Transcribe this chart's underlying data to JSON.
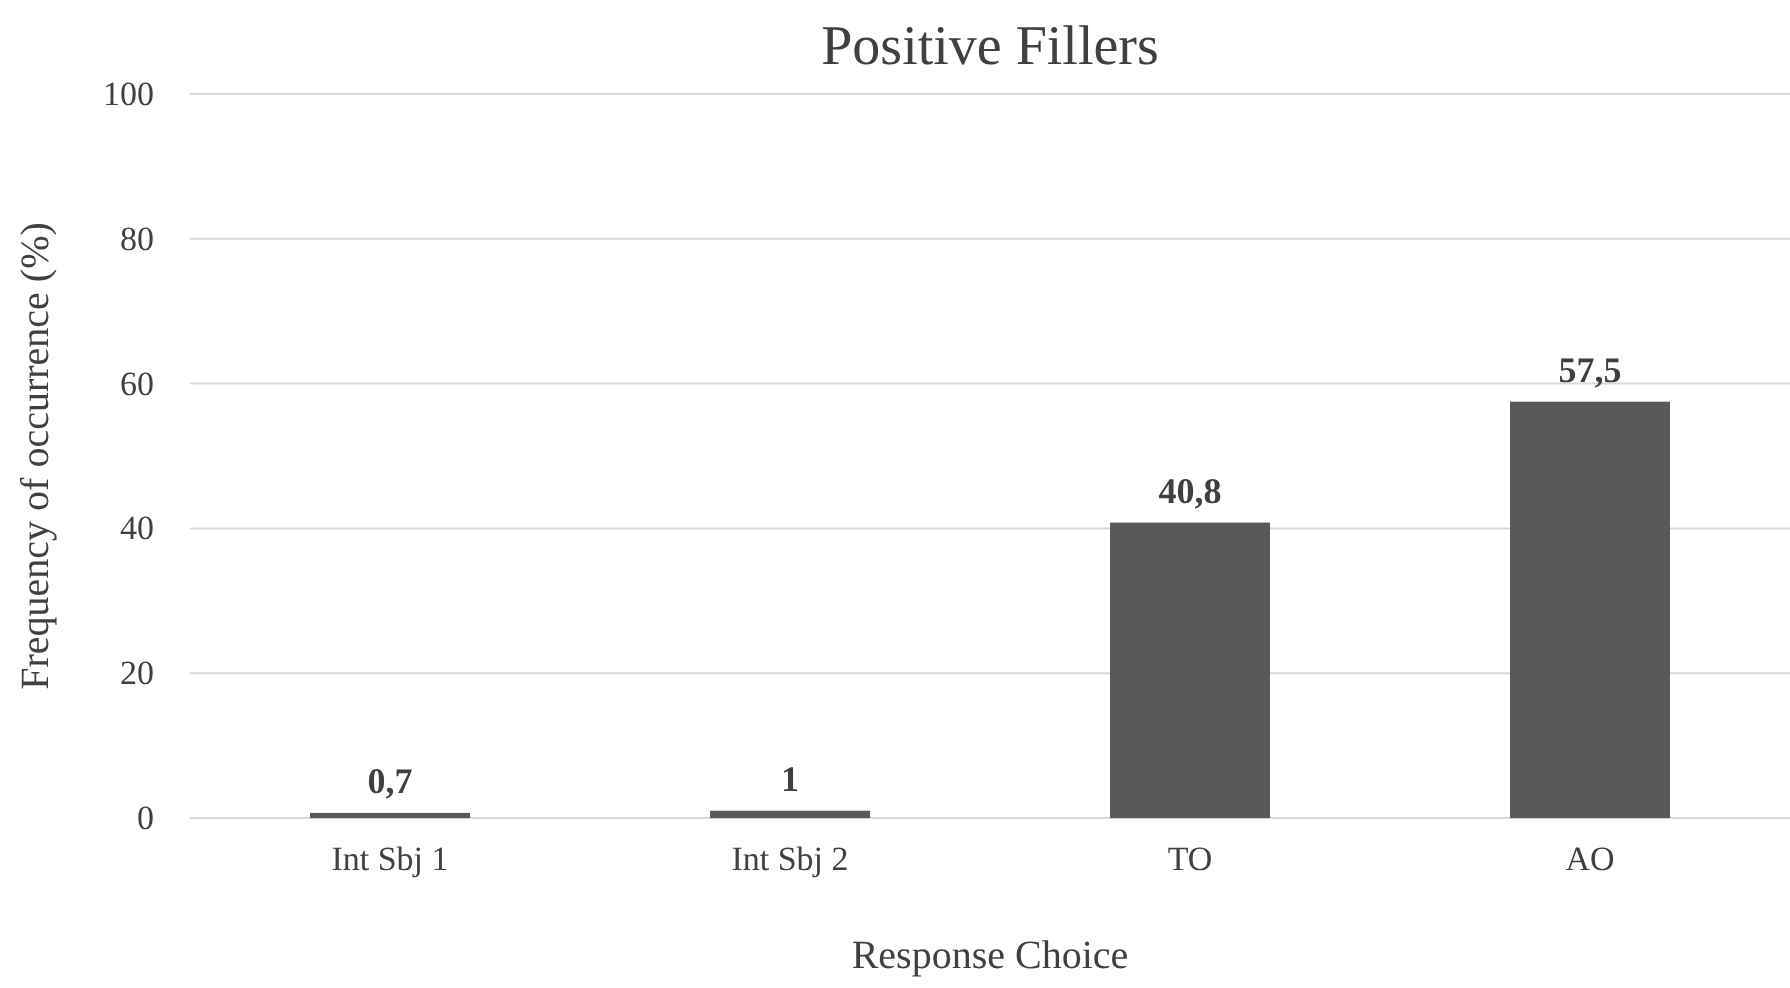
{
  "chart_data": {
    "type": "bar",
    "title": "Positive Fillers",
    "xlabel": "Response Choice",
    "ylabel": "Frequency of occurrence (%)",
    "categories": [
      "Int Sbj 1",
      "Int Sbj 2",
      "TO",
      "AO"
    ],
    "values": [
      0.7,
      1,
      40.8,
      57.5
    ],
    "value_labels": [
      "0,7",
      "1",
      "40,8",
      "57,5"
    ],
    "color": "#595959",
    "ylim": [
      0,
      100
    ],
    "yticks": [
      0,
      20,
      40,
      60,
      80,
      100
    ],
    "grid": "y"
  }
}
